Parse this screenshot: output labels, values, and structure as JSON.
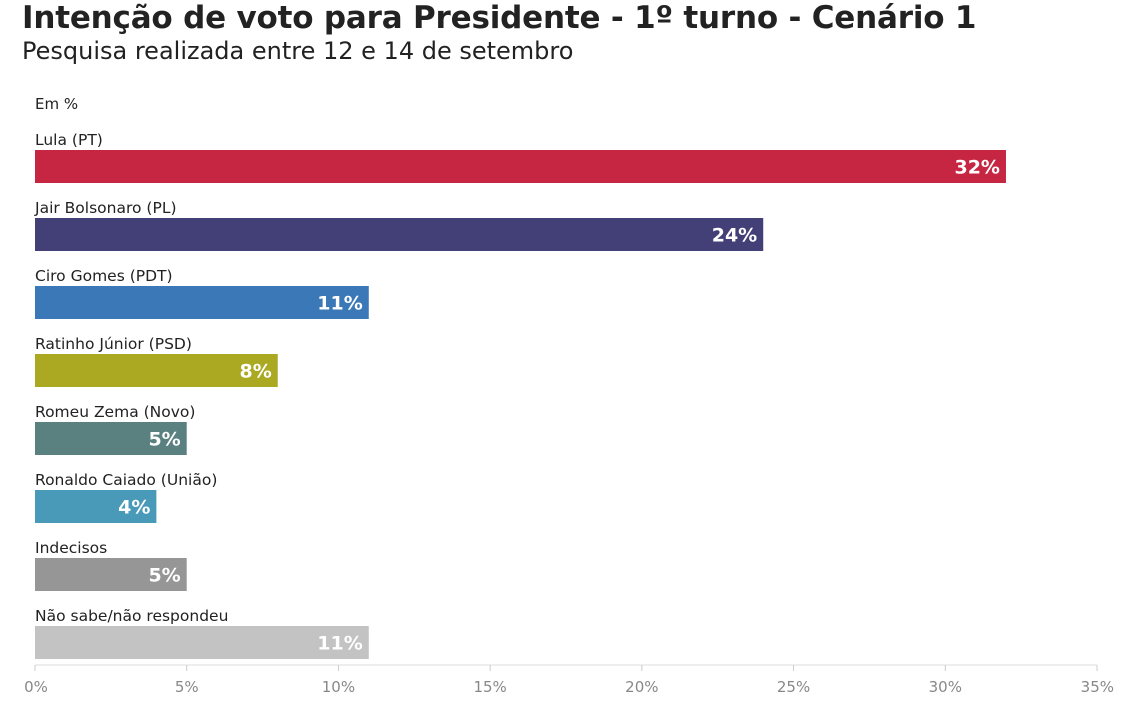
{
  "chart_data": {
    "type": "bar",
    "orientation": "horizontal",
    "title": "Intenção de voto para Presidente - 1º turno - Cenário 1",
    "subtitle": "Pesquisa realizada entre 12 e 14 de setembro",
    "unit_label": "Em %",
    "categories": [
      "Lula (PT)",
      "Jair Bolsonaro (PL)",
      "Ciro Gomes (PDT)",
      "Ratinho Júnior (PSD)",
      "Romeu Zema (Novo)",
      "Ronaldo Caiado (União)",
      "Indecisos",
      "Não sabe/não respondeu"
    ],
    "values": [
      32,
      24,
      11,
      8,
      5,
      4,
      5,
      11
    ],
    "value_labels": [
      "32%",
      "24%",
      "11%",
      "8%",
      "5%",
      "4%",
      "5%",
      "11%"
    ],
    "colors": [
      "#c62641",
      "#433f77",
      "#3a78b8",
      "#aba922",
      "#5a8080",
      "#4999b8",
      "#969696",
      "#c3c3c3"
    ],
    "xlim": [
      0,
      35
    ],
    "x_ticks": [
      0,
      5,
      10,
      15,
      20,
      25,
      30,
      35
    ],
    "x_tick_labels": [
      "0%",
      "5%",
      "10%",
      "15%",
      "20%",
      "25%",
      "30%",
      "35%"
    ],
    "grid": false,
    "legend": "none"
  }
}
